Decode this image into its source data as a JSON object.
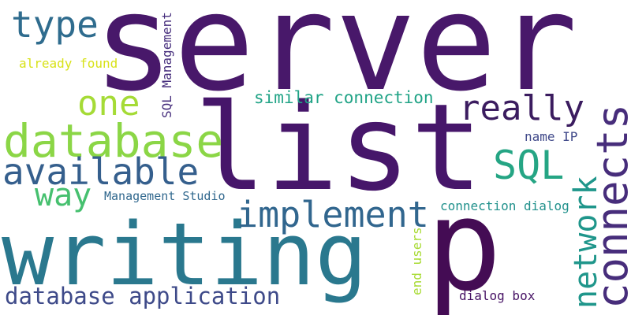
{
  "words": {
    "server": "server",
    "list": "list",
    "writing": "writing",
    "database": "database",
    "p": "p",
    "connects": "connects",
    "available": "available",
    "implement": "implement",
    "really": "really",
    "network": "network",
    "sql": "SQL",
    "type": "type",
    "one": "one",
    "way": "way",
    "database_application": "database application",
    "similar_connection": "similar connection",
    "sql_management": "SQL Management",
    "already_found": "already found",
    "management_studio": "Management Studio",
    "connection_dialog": "connection dialog",
    "name_ip": "name IP",
    "end_users": "end users",
    "dialog_box": "dialog box"
  },
  "colors": {
    "server": "#48186a",
    "list": "#46166a",
    "writing": "#2a788e",
    "database": "#8bd646",
    "p": "#440c54",
    "connects": "#472d7b",
    "available": "#355f8d",
    "implement": "#31668e",
    "really": "#3b1c5f",
    "network": "#1f968b",
    "sql": "#25a584",
    "type": "#2f6c8e",
    "one": "#a5db36",
    "way": "#46c06f",
    "database_application": "#3e4a89",
    "similar_connection": "#20a386",
    "sql_management": "#472f7d",
    "already_found": "#d8e219",
    "management_studio": "#31688e",
    "connection_dialog": "#21918c",
    "name_ip": "#3f4889",
    "end_users": "#a8db34",
    "dialog_box": "#471365"
  }
}
